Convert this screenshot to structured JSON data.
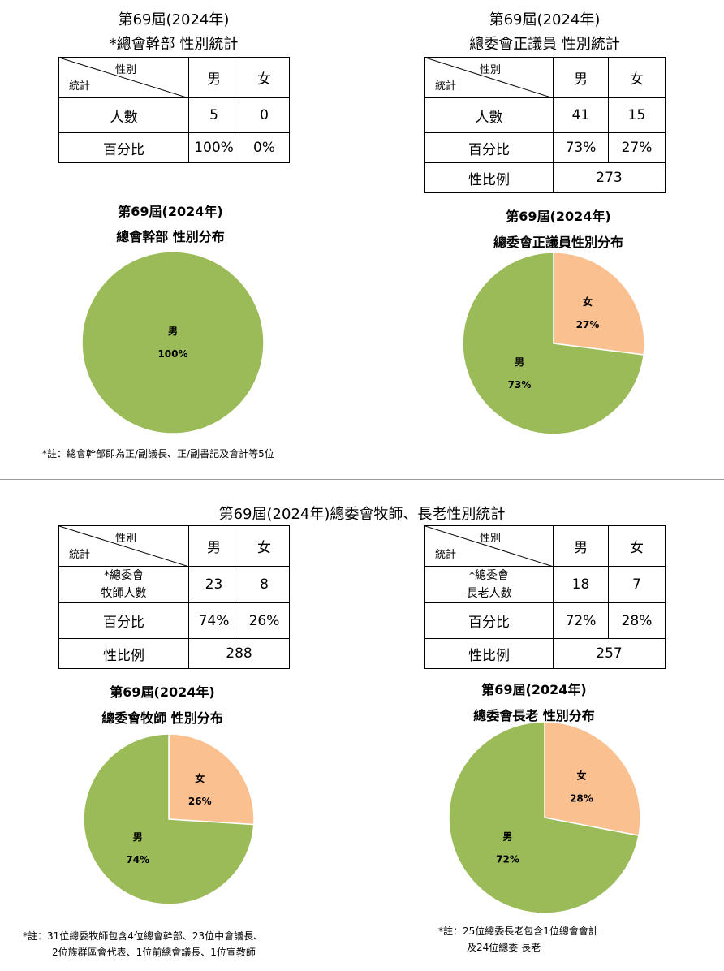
{
  "panels": {
    "exec": {
      "table_title1": "第69屆(2024年)",
      "table_title2": "*總會幹部 性別統計",
      "table": {
        "corner_top": "性別",
        "corner_bottom": "統計",
        "col_male": "男",
        "col_female": "女",
        "rows": [
          {
            "label": "人數",
            "male": "5",
            "female": "0"
          },
          {
            "label": "百分比",
            "male": "100%",
            "female": "0%"
          }
        ]
      },
      "chart_title1": "第69屆(2024年)",
      "chart_title2": "總會幹部 性別分布",
      "note": "*註：總會幹部即為正/副議長、正/副書記及會計等5位"
    },
    "delegates": {
      "table_title1": "第69屆(2024年)",
      "table_title2": "總委會正議員 性別統計",
      "table": {
        "corner_top": "性別",
        "corner_bottom": "統計",
        "col_male": "男",
        "col_female": "女",
        "rows": [
          {
            "label": "人數",
            "male": "41",
            "female": "15"
          },
          {
            "label": "百分比",
            "male": "73%",
            "female": "27%"
          }
        ],
        "ratio_label": "性比例",
        "ratio_value": "273"
      },
      "chart_title1": "第69屆(2024年)",
      "chart_title2": "總委會正議員性別分布"
    },
    "section_title": "第69屆(2024年)總委會牧師、長老性別統計",
    "pastors": {
      "table": {
        "corner_top": "性別",
        "corner_bottom": "統計",
        "col_male": "男",
        "col_female": "女",
        "row1_label_a": "*總委會",
        "row1_label_b": "牧師人數",
        "row1_male": "23",
        "row1_female": "8",
        "pct_label": "百分比",
        "pct_male": "74%",
        "pct_female": "26%",
        "ratio_label": "性比例",
        "ratio_value": "288"
      },
      "chart_title1": "第69屆(2024年)",
      "chart_title2": "總委會牧師 性別分布",
      "note_line1": "*註：31位總委牧師包含4位總會幹部、23位中會議長、",
      "note_line2": "2位族群區會代表、1位前總會議長、1位宣教師"
    },
    "elders": {
      "table": {
        "corner_top": "性別",
        "corner_bottom": "統計",
        "col_male": "男",
        "col_female": "女",
        "row1_label_a": "*總委會",
        "row1_label_b": "長老人數",
        "row1_male": "18",
        "row1_female": "7",
        "pct_label": "百分比",
        "pct_male": "72%",
        "pct_female": "28%",
        "ratio_label": "性比例",
        "ratio_value": "257"
      },
      "chart_title1": "第69屆(2024年)",
      "chart_title2": "總委會長老 性別分布",
      "note_line1": "*註：25位總委長老包含1位總會會計",
      "note_line2": "及24位總委 長老"
    }
  },
  "colors": {
    "male": "#9bbb59",
    "female": "#fac090"
  },
  "chart_data": [
    {
      "type": "pie",
      "title": "第69屆(2024年) 總會幹部 性別分布",
      "categories": [
        "男",
        "女"
      ],
      "values": [
        100,
        0
      ],
      "labels": [
        "男 100%",
        ""
      ]
    },
    {
      "type": "pie",
      "title": "第69屆(2024年) 總委會正議員性別分布",
      "categories": [
        "男",
        "女"
      ],
      "values": [
        73,
        27
      ],
      "labels": [
        "男 73%",
        "女 27%"
      ]
    },
    {
      "type": "pie",
      "title": "第69屆(2024年) 總委會牧師 性別分布",
      "categories": [
        "男",
        "女"
      ],
      "values": [
        74,
        26
      ],
      "labels": [
        "男 74%",
        "女 26%"
      ]
    },
    {
      "type": "pie",
      "title": "第69屆(2024年) 總委會長老 性別分布",
      "categories": [
        "男",
        "女"
      ],
      "values": [
        72,
        28
      ],
      "labels": [
        "男 72%",
        "女 28%"
      ]
    }
  ]
}
